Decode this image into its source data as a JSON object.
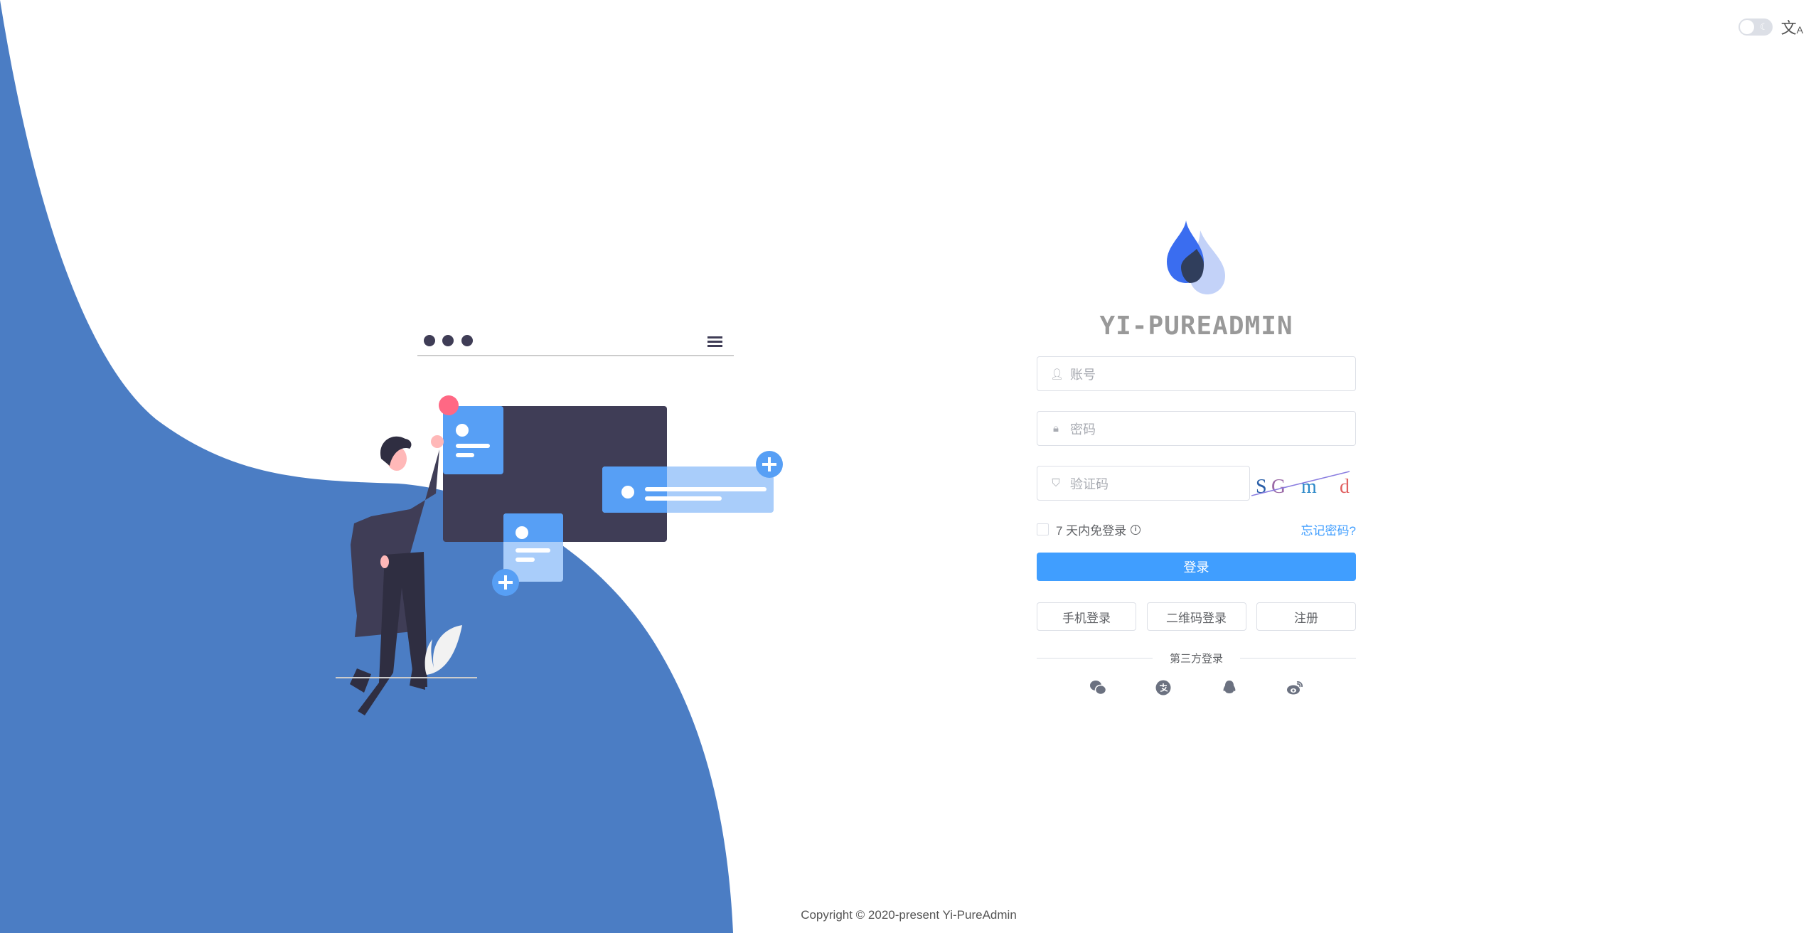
{
  "colors": {
    "accent": "#409eff",
    "curve": "#4b7dc4",
    "dark": "#3f3d56",
    "card": "#579ff5",
    "card_light": "#a9cdfa",
    "dot": "#ff6884"
  },
  "topbar": {
    "theme_icon": "moon-icon",
    "lang_icon": "translate-icon"
  },
  "brand": {
    "title": "YI-PUREADMIN"
  },
  "form": {
    "username_placeholder": "账号",
    "password_placeholder": "密码",
    "captcha_placeholder": "验证码",
    "captcha_text": [
      "S",
      "G",
      "m",
      "d"
    ],
    "remember_label": "7 天内免登录",
    "forgot_label": "忘记密码?",
    "login_label": "登录",
    "buttons": [
      "手机登录",
      "二维码登录",
      "注册"
    ],
    "third_party_label": "第三方登录",
    "third_party": [
      "wechat-icon",
      "alipay-icon",
      "qq-icon",
      "weibo-icon"
    ]
  },
  "footer": {
    "copyright": "Copyright © 2020-present Yi-PureAdmin"
  }
}
